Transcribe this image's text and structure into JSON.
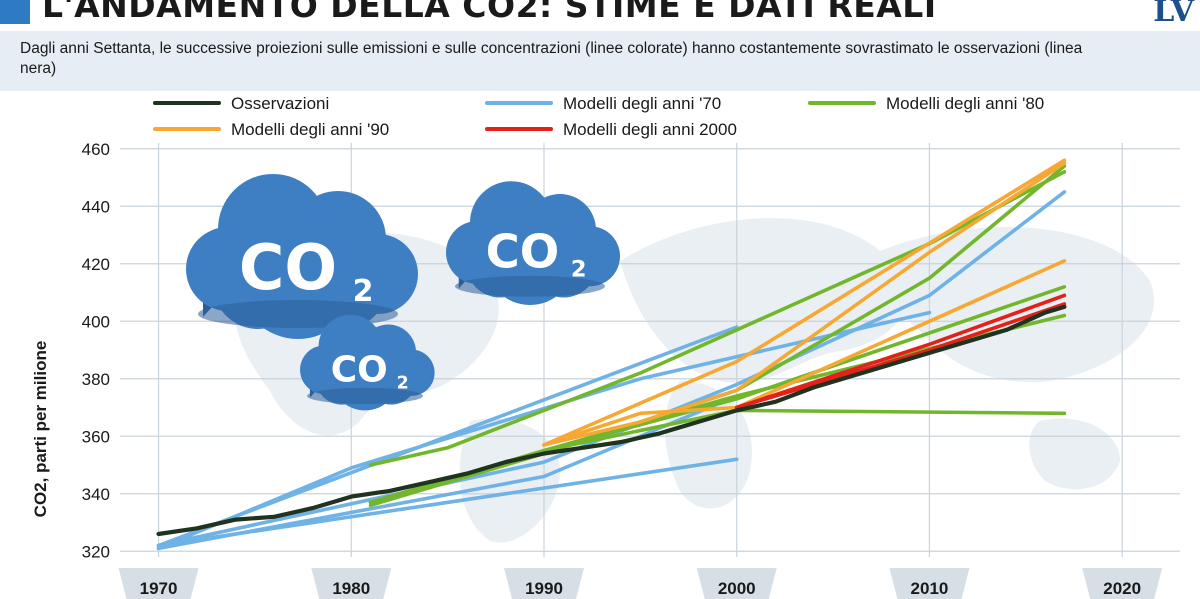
{
  "header": {
    "title": "L'ANDAMENTO DELLA CO2: STIME E DATI REALI",
    "logo": "LV",
    "subtitle": "Dagli anni Settanta, le successive proiezioni sulle emissioni e sulle concentrazioni (linee colorate) hanno costantemente sovrastimato le osservazioni (linea nera)"
  },
  "decor": {
    "cloud_label": "CO",
    "cloud_subscript": "2"
  },
  "colors": {
    "observations": "#1f3320",
    "models_70s": "#6fb2e6",
    "models_80s": "#72b62c",
    "models_90s": "#f6a833",
    "models_2000s": "#e32119",
    "grid": "#c9d3dc",
    "map": "#eaeff3",
    "cloud": "#3e7fc4",
    "cloud_dark": "#2c5f99"
  },
  "chart_data": {
    "type": "line",
    "title": "",
    "xlabel": "",
    "ylabel": "CO2, parti per milione",
    "xlim": [
      1968,
      2023
    ],
    "ylim": [
      318,
      462
    ],
    "xticks": [
      1970,
      1980,
      1990,
      2000,
      2010,
      2020
    ],
    "yticks": [
      320,
      340,
      360,
      380,
      400,
      420,
      440,
      460
    ],
    "grid": true,
    "legend": [
      {
        "name": "Osservazioni",
        "color": "#1f3320"
      },
      {
        "name": "Modelli degli anni '70",
        "color": "#6fb2e6"
      },
      {
        "name": "Modelli degli anni '80",
        "color": "#72b62c"
      },
      {
        "name": "Modelli degli anni '90",
        "color": "#f6a833"
      },
      {
        "name": "Modelli degli anni 2000",
        "color": "#e32119"
      }
    ],
    "legend_placement": "top",
    "series": [
      {
        "group": "models_70s",
        "points": [
          [
            1970,
            322
          ],
          [
            2000,
            352
          ]
        ]
      },
      {
        "group": "models_70s",
        "points": [
          [
            1970,
            322
          ],
          [
            2000,
            398
          ]
        ]
      },
      {
        "group": "models_70s",
        "points": [
          [
            1970,
            322
          ],
          [
            1990,
            351
          ],
          [
            2000,
            378
          ],
          [
            2010,
            409
          ],
          [
            2017,
            445
          ]
        ]
      },
      {
        "group": "models_70s",
        "points": [
          [
            1970,
            321
          ],
          [
            1980,
            349
          ],
          [
            1995,
            380
          ],
          [
            2010,
            403
          ]
        ]
      },
      {
        "group": "models_70s",
        "points": [
          [
            1970,
            321
          ],
          [
            1990,
            346
          ],
          [
            2000,
            374
          ]
        ]
      },
      {
        "group": "models_80s",
        "points": [
          [
            1981,
            350
          ],
          [
            1985,
            356
          ],
          [
            1995,
            382
          ],
          [
            2010,
            427
          ],
          [
            2017,
            452
          ]
        ]
      },
      {
        "group": "models_80s",
        "points": [
          [
            1981,
            336
          ],
          [
            1990,
            354
          ],
          [
            2000,
            376
          ],
          [
            2010,
            415
          ],
          [
            2017,
            454
          ]
        ]
      },
      {
        "group": "models_80s",
        "points": [
          [
            1981,
            337
          ],
          [
            1990,
            355
          ],
          [
            2000,
            369
          ],
          [
            2017,
            368
          ]
        ]
      },
      {
        "group": "models_80s",
        "points": [
          [
            1981,
            337
          ],
          [
            1990,
            355
          ],
          [
            2000,
            373
          ],
          [
            2017,
            412
          ]
        ]
      },
      {
        "group": "models_80s",
        "points": [
          [
            1990,
            355
          ],
          [
            2000,
            374
          ],
          [
            2017,
            402
          ]
        ]
      },
      {
        "group": "models_90s",
        "points": [
          [
            1990,
            357
          ],
          [
            2000,
            386
          ],
          [
            2017,
            456
          ]
        ]
      },
      {
        "group": "models_90s",
        "points": [
          [
            1990,
            357
          ],
          [
            1995,
            365
          ],
          [
            2000,
            376
          ],
          [
            2010,
            424
          ],
          [
            2017,
            455
          ]
        ]
      },
      {
        "group": "models_90s",
        "points": [
          [
            1990,
            357
          ],
          [
            1995,
            368
          ],
          [
            2000,
            370
          ],
          [
            2010,
            400
          ],
          [
            2017,
            421
          ]
        ]
      },
      {
        "group": "models_2000s",
        "points": [
          [
            2000,
            370
          ],
          [
            2010,
            392
          ],
          [
            2017,
            409
          ]
        ]
      },
      {
        "group": "models_2000s",
        "points": [
          [
            2000,
            370
          ],
          [
            2010,
            390
          ],
          [
            2017,
            406
          ]
        ]
      },
      {
        "group": "observations",
        "points": [
          [
            1970,
            326
          ],
          [
            1972,
            328
          ],
          [
            1974,
            331
          ],
          [
            1976,
            332
          ],
          [
            1978,
            335
          ],
          [
            1980,
            339
          ],
          [
            1982,
            341
          ],
          [
            1984,
            344
          ],
          [
            1986,
            347
          ],
          [
            1988,
            351
          ],
          [
            1990,
            354
          ],
          [
            1992,
            356
          ],
          [
            1994,
            358
          ],
          [
            1996,
            361
          ],
          [
            1998,
            365
          ],
          [
            2000,
            369
          ],
          [
            2002,
            372
          ],
          [
            2004,
            377
          ],
          [
            2006,
            381
          ],
          [
            2008,
            385
          ],
          [
            2010,
            389
          ],
          [
            2012,
            393
          ],
          [
            2014,
            397
          ],
          [
            2016,
            403
          ],
          [
            2017,
            405
          ]
        ]
      }
    ]
  }
}
